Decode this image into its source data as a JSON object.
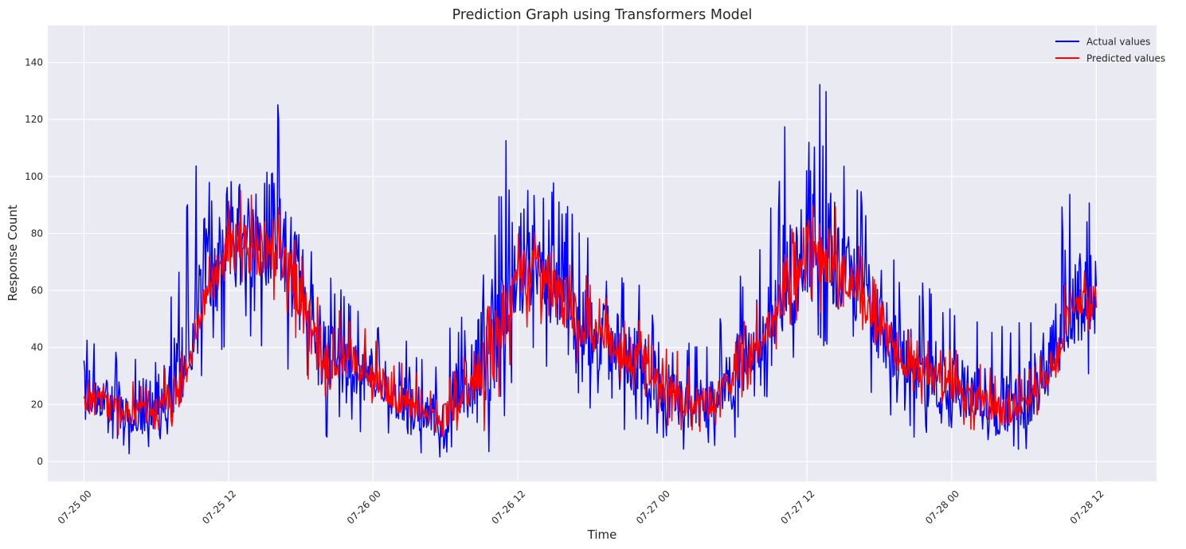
{
  "chart_data": {
    "type": "line",
    "title": "Prediction Graph using Transformers Model",
    "xlabel": "Time",
    "ylabel": "Response Count",
    "x_range": [
      "2024-07-24T21:00",
      "2024-07-28T17:00"
    ],
    "ylim": [
      -7,
      153
    ],
    "x_ticks": [
      "07-25 00",
      "07-25 12",
      "07-26 00",
      "07-26 12",
      "07-27 00",
      "07-27 12",
      "07-28 00",
      "07-28 12"
    ],
    "y_ticks": [
      0,
      20,
      40,
      60,
      80,
      100,
      120,
      140
    ],
    "grid": true,
    "legend_position": "top-right",
    "series": [
      {
        "name": "Actual values",
        "color": "#0000ff",
        "x": [
          "07-25 00",
          "07-25 02",
          "07-25 04",
          "07-25 06",
          "07-25 08",
          "07-25 10",
          "07-25 12",
          "07-25 14",
          "07-25 16",
          "07-25 18",
          "07-25 20",
          "07-25 22",
          "07-26 00",
          "07-26 02",
          "07-26 04",
          "07-26 06",
          "07-26 08",
          "07-26 10",
          "07-26 12",
          "07-26 14",
          "07-26 16",
          "07-26 18",
          "07-26 20",
          "07-26 22",
          "07-27 00",
          "07-27 02",
          "07-27 04",
          "07-27 06",
          "07-27 08",
          "07-27 10",
          "07-27 12",
          "07-27 14",
          "07-27 16",
          "07-27 18",
          "07-27 20",
          "07-27 22",
          "07-28 00",
          "07-28 02",
          "07-28 04",
          "07-28 06",
          "07-28 08",
          "07-28 10",
          "07-28 12"
        ],
        "values": [
          22,
          20,
          15,
          17,
          25,
          60,
          78,
          75,
          80,
          62,
          35,
          38,
          28,
          22,
          16,
          14,
          24,
          38,
          70,
          66,
          55,
          45,
          38,
          35,
          25,
          20,
          18,
          28,
          42,
          55,
          72,
          70,
          62,
          48,
          35,
          30,
          24,
          20,
          15,
          18,
          30,
          52,
          58
        ],
        "min_values": [
          13,
          8,
          1,
          3,
          10,
          26,
          38,
          40,
          35,
          25,
          0,
          10,
          8,
          3,
          2,
          0,
          5,
          0,
          30,
          32,
          25,
          18,
          10,
          8,
          2,
          1,
          2,
          8,
          18,
          25,
          35,
          38,
          30,
          18,
          8,
          5,
          3,
          1,
          1,
          2,
          8,
          25,
          28
        ],
        "max_values": [
          46,
          40,
          46,
          45,
          79,
          120,
          132,
          130,
          135,
          98,
          66,
          62,
          52,
          45,
          40,
          44,
          66,
          100,
          125,
          104,
          92,
          80,
          72,
          66,
          50,
          42,
          45,
          62,
          80,
          117,
          145,
          129,
          100,
          82,
          66,
          63,
          56,
          54,
          51,
          54,
          74,
          102,
          92
        ]
      },
      {
        "name": "Predicted values",
        "color": "#ff0000",
        "x": [
          "07-25 00",
          "07-25 02",
          "07-25 04",
          "07-25 06",
          "07-25 08",
          "07-25 10",
          "07-25 12",
          "07-25 14",
          "07-25 16",
          "07-25 18",
          "07-25 20",
          "07-25 22",
          "07-26 00",
          "07-26 02",
          "07-26 04",
          "07-26 06",
          "07-26 08",
          "07-26 10",
          "07-26 12",
          "07-26 14",
          "07-26 16",
          "07-26 18",
          "07-26 20",
          "07-26 22",
          "07-27 00",
          "07-27 02",
          "07-27 04",
          "07-27 06",
          "07-27 08",
          "07-27 10",
          "07-27 12",
          "07-27 14",
          "07-27 16",
          "07-27 18",
          "07-27 20",
          "07-27 22",
          "07-28 00",
          "07-28 02",
          "07-28 04",
          "07-28 06",
          "07-28 08",
          "07-28 10",
          "07-28 12"
        ],
        "values": [
          22,
          21,
          16,
          17,
          24,
          56,
          74,
          74,
          76,
          58,
          36,
          37,
          28,
          22,
          17,
          15,
          24,
          40,
          68,
          64,
          55,
          45,
          38,
          35,
          26,
          20,
          19,
          28,
          41,
          55,
          72,
          70,
          62,
          48,
          35,
          31,
          25,
          20,
          16,
          18,
          30,
          52,
          57
        ],
        "min_values": [
          10,
          9,
          6,
          8,
          14,
          45,
          55,
          55,
          50,
          35,
          5,
          25,
          15,
          10,
          10,
          8,
          12,
          6,
          45,
          40,
          35,
          30,
          25,
          22,
          12,
          10,
          10,
          18,
          28,
          40,
          50,
          52,
          45,
          32,
          22,
          18,
          15,
          10,
          8,
          10,
          20,
          40,
          45
        ],
        "max_values": [
          30,
          30,
          28,
          28,
          45,
          68,
          98,
          94,
          98,
          80,
          55,
          52,
          45,
          40,
          30,
          28,
          40,
          65,
          88,
          84,
          72,
          66,
          58,
          56,
          42,
          38,
          35,
          42,
          60,
          70,
          105,
          95,
          80,
          65,
          50,
          45,
          40,
          35,
          32,
          32,
          50,
          72,
          67
        ]
      }
    ]
  }
}
